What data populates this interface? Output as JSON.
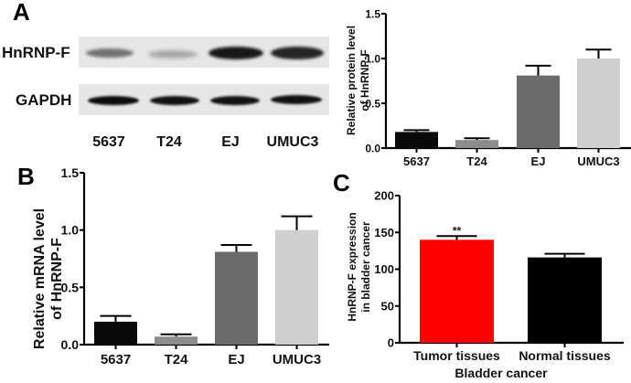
{
  "panels": {
    "A": {
      "letter": "A"
    },
    "B": {
      "letter": "B"
    },
    "C": {
      "letter": "C"
    }
  },
  "western_blot": {
    "rows": [
      {
        "label": "HnRNP-F",
        "band_intensity": [
          0.45,
          0.25,
          1.0,
          0.95
        ]
      },
      {
        "label": "GAPDH",
        "band_intensity": [
          1.0,
          0.95,
          0.95,
          0.95
        ]
      }
    ],
    "lanes": [
      "5637",
      "T24",
      "EJ",
      "UMUC3"
    ]
  },
  "chart_data": [
    {
      "panel": "A",
      "type": "bar",
      "title": "",
      "xlabel": "",
      "ylabel": "Relative protein level of HnRNP-F",
      "ylabel_lines": [
        "Relative protein level",
        "of HnRNP-F"
      ],
      "categories": [
        "5637",
        "T24",
        "EJ",
        "UMUC3"
      ],
      "values": [
        0.18,
        0.09,
        0.81,
        1.0
      ],
      "errors": [
        0.02,
        0.02,
        0.11,
        0.1
      ],
      "colors": [
        "#0a0a0a",
        "#8c8c8c",
        "#6b6b6b",
        "#cfcfcf"
      ],
      "ylim": [
        0,
        1.5
      ],
      "yticks": [
        "0.0",
        "0.5",
        "1.0",
        "1.5"
      ],
      "ytick_values": [
        0,
        0.5,
        1.0,
        1.5
      ],
      "grid": false,
      "legend": null
    },
    {
      "panel": "B",
      "type": "bar",
      "title": "",
      "xlabel": "",
      "ylabel": "Relative mRNA level of HnRNP-F",
      "ylabel_lines": [
        "Relative mRNA level",
        "of HnRNP-F"
      ],
      "categories": [
        "5637",
        "T24",
        "EJ",
        "UMUC3"
      ],
      "values": [
        0.2,
        0.07,
        0.81,
        1.0
      ],
      "errors": [
        0.05,
        0.02,
        0.06,
        0.12
      ],
      "colors": [
        "#0a0a0a",
        "#8c8c8c",
        "#6b6b6b",
        "#cfcfcf"
      ],
      "ylim": [
        0,
        1.5
      ],
      "yticks": [
        "0.0",
        "0.5",
        "1.0",
        "1.5"
      ],
      "ytick_values": [
        0,
        0.5,
        1.0,
        1.5
      ],
      "grid": false,
      "legend": null
    },
    {
      "panel": "C",
      "type": "bar",
      "title": "",
      "xlabel": "Bladder cancer",
      "ylabel": "HnRNP-F expression in bladder cancer",
      "ylabel_lines": [
        "HnRNP-F expression",
        "in bladder cancer"
      ],
      "categories": [
        "Tumor tissues",
        "Normal tissues"
      ],
      "values": [
        140,
        116
      ],
      "errors": [
        5,
        5
      ],
      "colors": [
        "#ff0000",
        "#000000"
      ],
      "annotations": [
        {
          "category": "Tumor tissues",
          "text": "**"
        }
      ],
      "ylim": [
        0,
        200
      ],
      "yticks": [
        "0",
        "50",
        "100",
        "150",
        "200"
      ],
      "ytick_values": [
        0,
        50,
        100,
        150,
        200
      ],
      "grid": false,
      "legend": null
    }
  ]
}
